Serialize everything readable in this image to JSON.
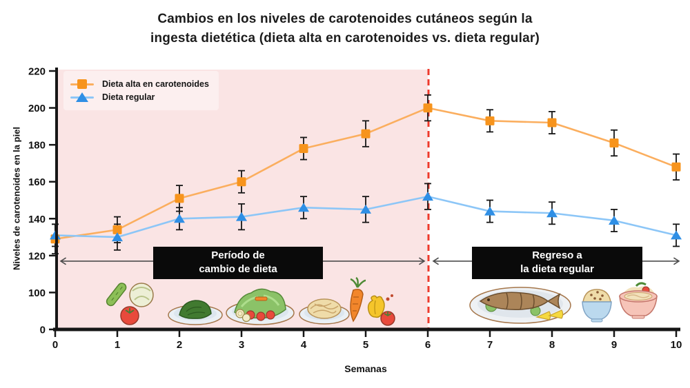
{
  "title": {
    "line1": "Cambios en los niveles de carotenoides cutáneos según la",
    "line2": "ingesta dietética (dieta alta en carotenoides vs. dieta regular)"
  },
  "axes": {
    "x_label": "Semanas",
    "y_label": "Niveles de carotenoides en la piel"
  },
  "legend": {
    "items": [
      {
        "label": "Dieta alta en carotenoides",
        "marker": "square",
        "color": "#F7941D"
      },
      {
        "label": "Dieta regular",
        "marker": "triangle",
        "color": "#2F8FE5"
      }
    ]
  },
  "annotations": {
    "left": {
      "line1": "Período de",
      "line2": "cambio de dieta"
    },
    "right": {
      "line1": "Regreso a",
      "line2": "la dieta regular"
    }
  },
  "food_icons": {
    "left_region": [
      "cucumber-cabbage-tomato-icon",
      "spinach-plate-icon",
      "salad-plate-icon",
      "pasta-plate-icon",
      "carrot-pepper-tomato-icon"
    ],
    "right_region": [
      "fish-plate-icon",
      "rice-bowl-icon",
      "noodle-bowl-icon"
    ]
  },
  "colors": {
    "high_diet_marker": "#F7941D",
    "high_diet_line": "#FBAE5E",
    "regular_diet_marker": "#2F8FE5",
    "regular_diet_line": "#8CC6F7",
    "vline_red": "#EE3A2C",
    "shaded_pink": "#FAE4E4",
    "errorbar_black": "#161616",
    "arrow_gray": "#4d4d4d"
  },
  "chart_data": {
    "type": "line",
    "title": "Cambios en los niveles de carotenoides cutáneos según la ingesta dietética (dieta alta en carotenoides vs. dieta regular)",
    "xlabel": "Semanas",
    "ylabel": "Niveles de carotenoides en la piel",
    "x": [
      0,
      1,
      2,
      3,
      4,
      5,
      6,
      7,
      8,
      9,
      10
    ],
    "x_tick_labels": [
      "0",
      "1",
      "2",
      "3",
      "4",
      "5",
      "6",
      "7",
      "8",
      "9",
      "10"
    ],
    "y_tick_labels": [
      "220",
      "200",
      "180",
      "160",
      "140",
      "120",
      "100",
      "0"
    ],
    "ylim": [
      0,
      220
    ],
    "grid": false,
    "legend_position": "upper-left",
    "series": [
      {
        "name": "Dieta alta en carotenoides",
        "marker": "square",
        "marker_color": "#F7941D",
        "line_color": "#FBAE5E",
        "values": [
          129,
          134,
          151,
          160,
          178,
          186,
          200,
          193,
          192,
          181,
          168
        ],
        "error": [
          8,
          7,
          7,
          6,
          6,
          7,
          7,
          6,
          6,
          7,
          7
        ]
      },
      {
        "name": "Dieta regular",
        "marker": "triangle",
        "marker_color": "#2F8FE5",
        "line_color": "#8CC6F7",
        "values": [
          131,
          130,
          140,
          141,
          146,
          145,
          152,
          144,
          143,
          139,
          131
        ],
        "error": [
          6,
          7,
          6,
          7,
          6,
          7,
          7,
          6,
          6,
          6,
          6
        ]
      }
    ],
    "vline": {
      "x": 6,
      "color": "#EE3A2C",
      "style": "dashed"
    },
    "shaded_region": {
      "x_start": 0,
      "x_end": 6,
      "color": "#FAE4E4"
    },
    "annotation_arrows": [
      {
        "x_start": 0,
        "x_end": 6,
        "y": 117,
        "label": "Período de cambio de dieta"
      },
      {
        "x_start": 6,
        "x_end": 10,
        "y": 117,
        "label": "Regreso a la dieta regular"
      }
    ]
  }
}
